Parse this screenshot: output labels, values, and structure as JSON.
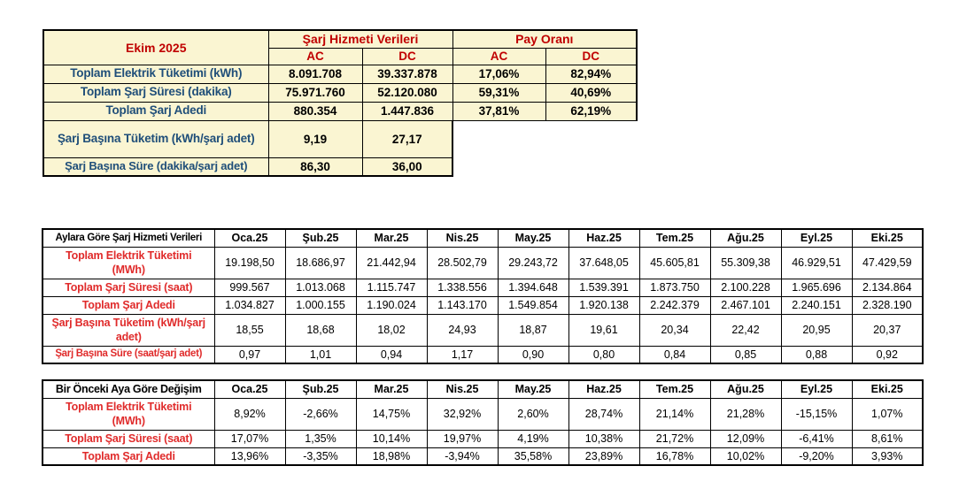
{
  "colors": {
    "summary_bg": "#FAF5D2",
    "summary_header_red": "#C00000",
    "summary_label_blue": "#1F4E79",
    "monthly_label_red": "#E02B2B",
    "border": "#000000",
    "page_bg": "#FFFFFF"
  },
  "summary_table": {
    "title": "Ekim 2025",
    "group_headers": [
      "Şarj Hizmeti Verileri",
      "Pay Oranı"
    ],
    "sub_headers": [
      "AC",
      "DC",
      "AC",
      "DC"
    ],
    "rows": [
      {
        "label": "Toplam Elektrik Tüketimi (kWh)",
        "values": [
          "8.091.708",
          "39.337.878",
          "17,06%",
          "82,94%"
        ]
      },
      {
        "label": "Toplam Şarj Süresi (dakika)",
        "values": [
          "75.971.760",
          "52.120.080",
          "59,31%",
          "40,69%"
        ]
      },
      {
        "label": "Toplam Şarj Adedi",
        "values": [
          "880.354",
          "1.447.836",
          "37,81%",
          "62,19%"
        ]
      },
      {
        "label": "Şarj Başına Tüketim (kWh/şarj adet)",
        "tall": true,
        "values": [
          "9,19",
          "27,17"
        ]
      },
      {
        "label": "Şarj Başına Süre (dakika/şarj adet)",
        "nowrap": true,
        "values": [
          "86,30",
          "36,00"
        ]
      }
    ]
  },
  "monthly_table": {
    "title": "Aylara Göre Şarj Hizmeti Verileri",
    "months": [
      "Oca.25",
      "Şub.25",
      "Mar.25",
      "Nis.25",
      "May.25",
      "Haz.25",
      "Tem.25",
      "Ağu.25",
      "Eyl.25",
      "Eki.25"
    ],
    "rows": [
      {
        "label": "Toplam Elektrik Tüketimi (MWh)",
        "tall": true,
        "values": [
          "19.198,50",
          "18.686,97",
          "21.442,94",
          "28.502,79",
          "29.243,72",
          "37.648,05",
          "45.605,81",
          "55.309,38",
          "46.929,51",
          "47.429,59"
        ]
      },
      {
        "label": "Toplam Şarj Süresi (saat)",
        "values": [
          "999.567",
          "1.013.068",
          "1.115.747",
          "1.338.556",
          "1.394.648",
          "1.539.391",
          "1.873.750",
          "2.100.228",
          "1.965.696",
          "2.134.864"
        ]
      },
      {
        "label": "Toplam Şarj Adedi",
        "values": [
          "1.034.827",
          "1.000.155",
          "1.190.024",
          "1.143.170",
          "1.549.854",
          "1.920.138",
          "2.242.379",
          "2.467.101",
          "2.240.151",
          "2.328.190"
        ]
      },
      {
        "label": "Şarj Başına Tüketim (kWh/şarj adet)",
        "tall": true,
        "values": [
          "18,55",
          "18,68",
          "18,02",
          "24,93",
          "18,87",
          "19,61",
          "20,34",
          "22,42",
          "20,95",
          "20,37"
        ]
      },
      {
        "label": "Şarj Başına Süre (saat/şarj adet)",
        "nowrap": true,
        "values": [
          "0,97",
          "1,01",
          "0,94",
          "1,17",
          "0,90",
          "0,80",
          "0,84",
          "0,85",
          "0,88",
          "0,92"
        ]
      }
    ]
  },
  "change_table": {
    "title": "Bir Önceki Aya Göre Değişim",
    "months": [
      "Oca.25",
      "Şub.25",
      "Mar.25",
      "Nis.25",
      "May.25",
      "Haz.25",
      "Tem.25",
      "Ağu.25",
      "Eyl.25",
      "Eki.25"
    ],
    "rows": [
      {
        "label": "Toplam Elektrik Tüketimi (MWh)",
        "tall": true,
        "values": [
          "8,92%",
          "-2,66%",
          "14,75%",
          "32,92%",
          "2,60%",
          "28,74%",
          "21,14%",
          "21,28%",
          "-15,15%",
          "1,07%"
        ]
      },
      {
        "label": "Toplam Şarj Süresi (saat)",
        "values": [
          "17,07%",
          "1,35%",
          "10,14%",
          "19,97%",
          "4,19%",
          "10,38%",
          "21,72%",
          "12,09%",
          "-6,41%",
          "8,61%"
        ]
      },
      {
        "label": "Toplam Şarj Adedi",
        "values": [
          "13,96%",
          "-3,35%",
          "18,98%",
          "-3,94%",
          "35,58%",
          "23,89%",
          "16,78%",
          "10,02%",
          "-9,20%",
          "3,93%"
        ]
      }
    ]
  }
}
